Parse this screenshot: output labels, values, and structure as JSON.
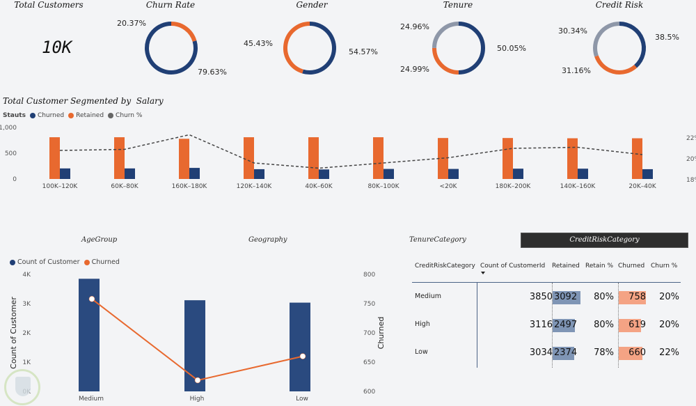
{
  "kpi": {
    "title": "Total Customers",
    "value": "10K"
  },
  "donuts": [
    {
      "title": "Churn Rate",
      "labels": [
        "20.37%",
        "79.63%"
      ],
      "segments": [
        {
          "value": 20.37,
          "color": "#e8692f"
        },
        {
          "value": 79.63,
          "color": "#203f75"
        }
      ]
    },
    {
      "title": "Gender",
      "labels": [
        "45.43%",
        "54.57%"
      ],
      "segments": [
        {
          "value": 54.57,
          "color": "#203f75"
        },
        {
          "value": 45.43,
          "color": "#e8692f"
        }
      ]
    },
    {
      "title": "Tenure",
      "labels": [
        "24.96%",
        "50.05%",
        "24.99%"
      ],
      "segments": [
        {
          "value": 50.05,
          "color": "#203f75"
        },
        {
          "value": 24.99,
          "color": "#e8692f"
        },
        {
          "value": 24.96,
          "color": "#8e97a8"
        }
      ]
    },
    {
      "title": "Credit Risk",
      "labels": [
        "30.34%",
        "38.5%",
        "31.16%"
      ],
      "segments": [
        {
          "value": 38.5,
          "color": "#203f75"
        },
        {
          "value": 31.16,
          "color": "#e8692f"
        },
        {
          "value": 30.34,
          "color": "#8e97a8"
        }
      ]
    }
  ],
  "chart_data": [
    {
      "type": "bar",
      "title": "Total Customer Segmented by  Salary",
      "legend_title": "Stauts",
      "legend_position": "top-left",
      "categories": [
        "100K–120K",
        "60K–80K",
        "160K–180K",
        "120K–140K",
        "40K–60K",
        "80K–100K",
        "<20K",
        "180K–200K",
        "140K–160K",
        "20K–40K"
      ],
      "series": [
        {
          "name": "Churned",
          "color": "#203f75",
          "values": [
            205,
            205,
            215,
            190,
            185,
            195,
            195,
            200,
            200,
            190
          ]
        },
        {
          "name": "Retained",
          "color": "#e8692f",
          "values": [
            810,
            810,
            780,
            810,
            810,
            810,
            795,
            795,
            790,
            790
          ]
        },
        {
          "name": "Churn %",
          "color": "#555555",
          "line": "dashed",
          "axis": "secondary",
          "values": [
            20.8,
            20.9,
            22.3,
            19.6,
            19.1,
            19.6,
            20.1,
            21.0,
            21.1,
            20.4
          ]
        }
      ],
      "yticks": [
        "0",
        "500",
        "1,000"
      ],
      "ylim": [
        0,
        1000
      ],
      "y2ticks": [
        "18%",
        "20%",
        "22%"
      ],
      "y2lim": [
        18,
        22
      ],
      "xlabel": "",
      "ylabel": ""
    },
    {
      "type": "bar",
      "title": "",
      "legend_position": "top-left",
      "categories": [
        "Medium",
        "High",
        "Low"
      ],
      "series": [
        {
          "name": "Count of Customer",
          "color": "#2a4a7f",
          "values": [
            3850,
            3116,
            3034
          ]
        },
        {
          "name": "Churned",
          "color": "#e8692f",
          "axis": "secondary",
          "values": [
            758,
            619,
            660
          ]
        }
      ],
      "yticks": [
        "0K",
        "1K",
        "2K",
        "3K",
        "4K"
      ],
      "ylim": [
        0,
        4000
      ],
      "y2ticks": [
        "600",
        "650",
        "700",
        "750",
        "800"
      ],
      "y2lim": [
        600,
        800
      ],
      "ylabel": "Count of Customer",
      "y2label": "Churned",
      "xlabel": ""
    }
  ],
  "slicers": {
    "tabs": [
      "AgeGroup",
      "Geography",
      "TenureCategory",
      "CreditRiskCategory"
    ],
    "active": "CreditRiskCategory"
  },
  "matrix": {
    "headers": [
      "CreditRiskCategory",
      "Count of CustomerId",
      "Retained",
      "Retain %",
      "Churned",
      "Churn %"
    ],
    "rows": [
      {
        "category": "Medium",
        "count": "3850",
        "retained": "3092",
        "retain_pct": "80%",
        "churned": "758",
        "churn_pct": "20%",
        "retained_value": 3092,
        "churned_value": 758
      },
      {
        "category": "High",
        "count": "3116",
        "retained": "2497",
        "retain_pct": "80%",
        "churned": "619",
        "churn_pct": "20%",
        "retained_value": 2497,
        "churned_value": 619
      },
      {
        "category": "Low",
        "count": "3034",
        "retained": "2374",
        "retain_pct": "78%",
        "churned": "660",
        "churn_pct": "22%",
        "retained_value": 2374,
        "churned_value": 660
      }
    ]
  }
}
